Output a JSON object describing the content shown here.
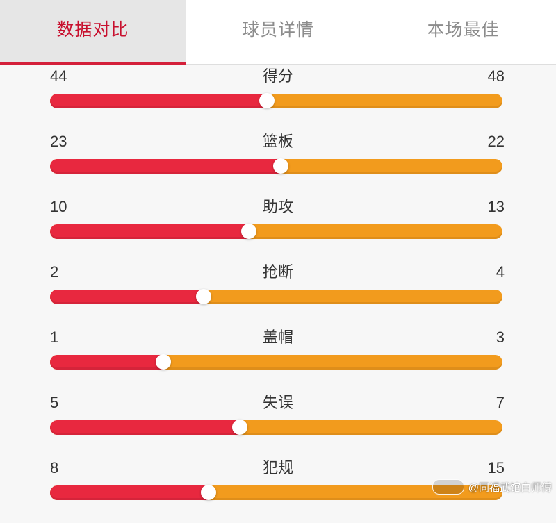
{
  "tabs": [
    {
      "label": "数据对比",
      "active": true
    },
    {
      "label": "球员详情",
      "active": false
    },
    {
      "label": "本场最佳",
      "active": false
    }
  ],
  "colors": {
    "accent": "#d4203a",
    "left_bar": "#e8283f",
    "right_bar": "#f29b1d"
  },
  "stats": [
    {
      "label": "得分",
      "left": "44",
      "right": "48",
      "left_share": 0.48
    },
    {
      "label": "篮板",
      "left": "23",
      "right": "22",
      "left_share": 0.51
    },
    {
      "label": "助攻",
      "left": "10",
      "right": "13",
      "left_share": 0.44
    },
    {
      "label": "抢断",
      "left": "2",
      "right": "4",
      "left_share": 0.34
    },
    {
      "label": "盖帽",
      "left": "1",
      "right": "3",
      "left_share": 0.25
    },
    {
      "label": "失误",
      "left": "5",
      "right": "7",
      "left_share": 0.42
    },
    {
      "label": "犯规",
      "left": "8",
      "right": "15",
      "left_share": 0.35
    }
  ],
  "watermark": {
    "text": "@同福武馆白师傅"
  }
}
